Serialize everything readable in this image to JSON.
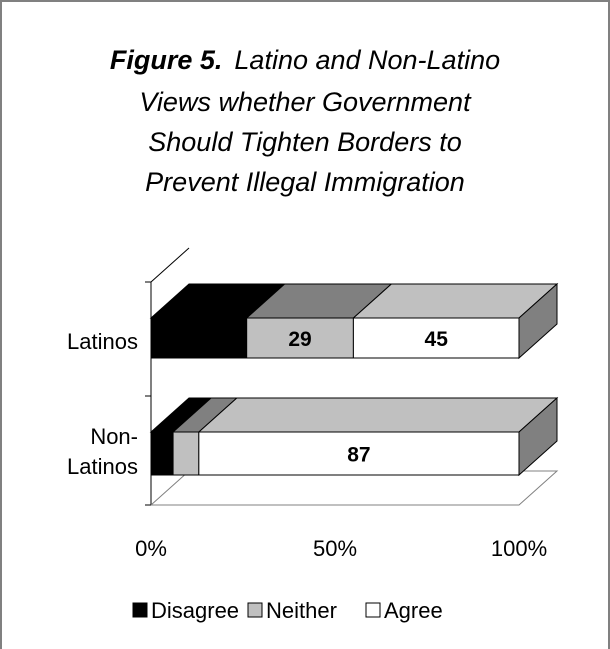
{
  "chart_data": {
    "type": "bar",
    "stacked": "percent",
    "three_d": true,
    "title": {
      "figure_label": "Figure 5.",
      "lines": [
        "Latino and Non-Latino",
        "Views whether Government",
        "Should Tighten Borders to",
        "Prevent Illegal Immigration"
      ]
    },
    "categories": [
      "Latinos",
      "Non-Latinos"
    ],
    "category_label_lines": [
      [
        "Latinos"
      ],
      [
        "Non-",
        "Latinos"
      ]
    ],
    "series": [
      {
        "name": "Disagree",
        "values": [
          26,
          6
        ],
        "color": "#000000",
        "labels": [
          "",
          ""
        ]
      },
      {
        "name": "Neither",
        "values": [
          29,
          7
        ],
        "color": "#c0c0c0",
        "labels": [
          "29",
          ""
        ]
      },
      {
        "name": "Agree",
        "values": [
          45,
          87
        ],
        "color": "#ffffff",
        "labels": [
          "45",
          "87"
        ]
      }
    ],
    "xaxis": {
      "min": 0,
      "max": 100,
      "ticks": [
        "0%",
        "50%",
        "100%"
      ]
    },
    "legend": {
      "position": "bottom"
    },
    "colors": {
      "top_shade": "#808080",
      "side_shade": "#808080",
      "border": "#000000"
    }
  }
}
